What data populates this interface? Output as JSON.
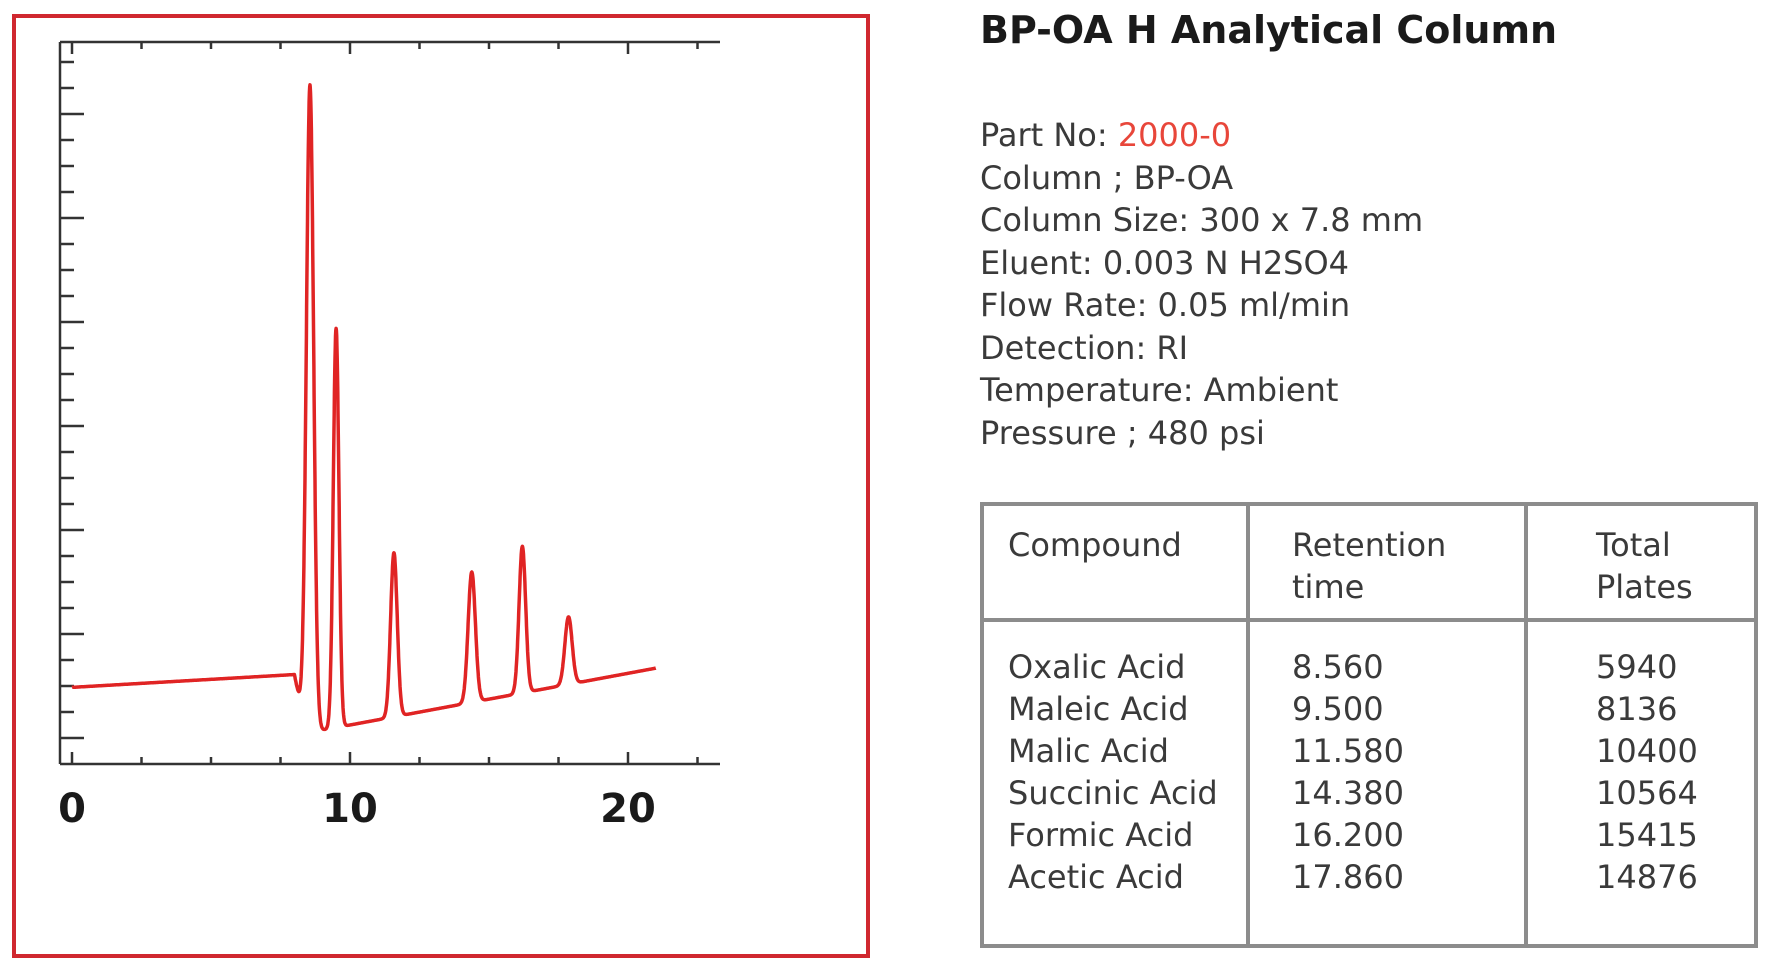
{
  "chart_data": {
    "type": "line",
    "title": "",
    "xlabel": "",
    "ylabel": "",
    "xlim": [
      -0.5,
      23
    ],
    "ylim": [
      -0.02,
      1.0
    ],
    "x_ticks": [
      0,
      10,
      20
    ],
    "x_tick_labels": [
      "0",
      "10",
      "20"
    ],
    "grid": false,
    "legend": "none",
    "color": "#e02424",
    "baseline": [
      [
        0,
        0.04
      ],
      [
        8,
        0.06
      ],
      [
        8.4,
        -0.03
      ],
      [
        8.6,
        -0.03
      ],
      [
        21,
        0.07
      ]
    ],
    "series": [
      {
        "values": [
          {
            "x": 0.0,
            "y": 0.04
          },
          {
            "x": 8.0,
            "y": 0.06
          },
          {
            "x": 8.05,
            "y": 0.06
          },
          {
            "x": 8.2,
            "y": -0.03
          },
          {
            "x": 8.45,
            "y": -0.03
          },
          {
            "x": 8.55,
            "y": 0.98
          },
          {
            "x": 9.1,
            "y": 0.1
          },
          {
            "x": 9.5,
            "y": 0.6
          },
          {
            "x": 10.2,
            "y": 0.08
          },
          {
            "x": 11.58,
            "y": 0.25
          },
          {
            "x": 14.38,
            "y": 0.22
          },
          {
            "x": 16.2,
            "y": 0.26
          },
          {
            "x": 17.86,
            "y": 0.15
          },
          {
            "x": 21.0,
            "y": 0.07
          }
        ]
      }
    ],
    "peaks": [
      {
        "x": 8.56,
        "height": 0.98,
        "width": 0.22
      },
      {
        "x": 9.5,
        "height": 0.6,
        "width": 0.17
      },
      {
        "x": 11.58,
        "height": 0.25,
        "width": 0.2
      },
      {
        "x": 14.38,
        "height": 0.22,
        "width": 0.22
      },
      {
        "x": 16.2,
        "height": 0.26,
        "width": 0.2
      },
      {
        "x": 17.86,
        "height": 0.15,
        "width": 0.22
      }
    ]
  },
  "panel": {
    "title": "BP-OA H Analytical Column",
    "part_label": "Part No: ",
    "part_value": "2000-0",
    "specs": [
      "Column ; BP-OA",
      "Column Size: 300 x 7.8 mm",
      "Eluent: 0.003 N H2SO4",
      "Flow Rate: 0.05 ml/min",
      "Detection: RI",
      "Temperature: Ambient",
      "Pressure ; 480 psi"
    ],
    "colors": {
      "part_value": "#e8463a",
      "frame": "#d0282f",
      "table_border": "#8c8c8c"
    }
  },
  "table": {
    "headers": {
      "compound": "Compound",
      "retention_line1": "Retention",
      "retention_line2": "time",
      "plates_line1": "Total",
      "plates_line2": "Plates"
    },
    "rows": [
      {
        "compound": "Oxalic Acid",
        "retention": "8.560",
        "plates": "5940"
      },
      {
        "compound": "Maleic Acid",
        "retention": "9.500",
        "plates": "8136"
      },
      {
        "compound": "Malic Acid",
        "retention": "11.580",
        "plates": "10400"
      },
      {
        "compound": "Succinic Acid",
        "retention": "14.380",
        "plates": "10564"
      },
      {
        "compound": "Formic Acid",
        "retention": "16.200",
        "plates": "15415"
      },
      {
        "compound": "Acetic Acid",
        "retention": "17.860",
        "plates": "14876"
      }
    ]
  }
}
